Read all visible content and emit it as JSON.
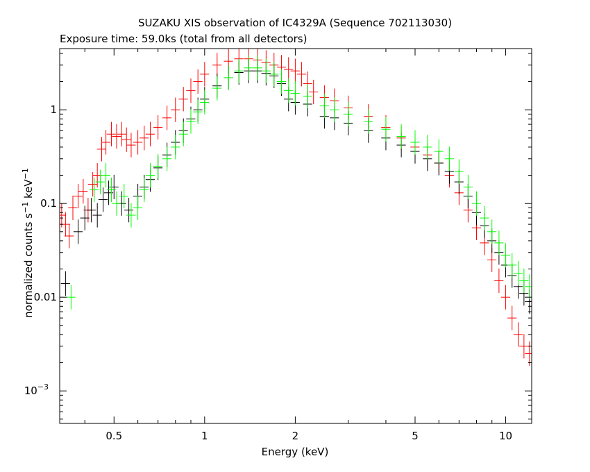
{
  "chart_data": {
    "type": "scatter",
    "title": "SUZAKU XIS observation of IC4329A (Sequence 702113030)",
    "subtitle": "Exposure time: 59.0ks (total from all detectors)",
    "xlabel": "Energy (keV)",
    "ylabel_main": "normalized counts s",
    "ylabel_sup1": "−1",
    "ylabel_mid": " keV",
    "ylabel_sup2": "−1",
    "x_scale": "log",
    "y_scale": "log",
    "xlim": [
      0.33,
      12.2
    ],
    "ylim": [
      0.00045,
      4.5
    ],
    "grid": false,
    "x_ticks": [
      {
        "value": 0.5,
        "label": "0.5"
      },
      {
        "value": 1,
        "label": "1"
      },
      {
        "value": 2,
        "label": "2"
      },
      {
        "value": 5,
        "label": "5"
      },
      {
        "value": 10,
        "label": "10"
      }
    ],
    "y_ticks": [
      {
        "value": 1,
        "label": "1"
      },
      {
        "value": 0.1,
        "label": "0.1"
      },
      {
        "value": 0.01,
        "label": "0.01"
      },
      {
        "value": 0.001,
        "label": "10",
        "sup": "−3"
      }
    ],
    "series": [
      {
        "color": "#ff0000",
        "points": [
          {
            "x": 0.335,
            "y": 0.075
          },
          {
            "x": 0.345,
            "y": 0.06
          },
          {
            "x": 0.355,
            "y": 0.045
          },
          {
            "x": 0.365,
            "y": 0.09
          },
          {
            "x": 0.38,
            "y": 0.12
          },
          {
            "x": 0.395,
            "y": 0.135
          },
          {
            "x": 0.41,
            "y": 0.085
          },
          {
            "x": 0.425,
            "y": 0.16
          },
          {
            "x": 0.44,
            "y": 0.2
          },
          {
            "x": 0.455,
            "y": 0.38
          },
          {
            "x": 0.47,
            "y": 0.45
          },
          {
            "x": 0.49,
            "y": 0.55
          },
          {
            "x": 0.51,
            "y": 0.52
          },
          {
            "x": 0.53,
            "y": 0.55
          },
          {
            "x": 0.55,
            "y": 0.48
          },
          {
            "x": 0.57,
            "y": 0.42
          },
          {
            "x": 0.6,
            "y": 0.45
          },
          {
            "x": 0.63,
            "y": 0.5
          },
          {
            "x": 0.66,
            "y": 0.55
          },
          {
            "x": 0.7,
            "y": 0.65
          },
          {
            "x": 0.75,
            "y": 0.82
          },
          {
            "x": 0.8,
            "y": 1.0
          },
          {
            "x": 0.85,
            "y": 1.3
          },
          {
            "x": 0.9,
            "y": 1.6
          },
          {
            "x": 0.95,
            "y": 2.0
          },
          {
            "x": 1.0,
            "y": 2.4
          },
          {
            "x": 1.1,
            "y": 3.0
          },
          {
            "x": 1.2,
            "y": 3.3
          },
          {
            "x": 1.3,
            "y": 3.5
          },
          {
            "x": 1.4,
            "y": 3.5
          },
          {
            "x": 1.5,
            "y": 3.4
          },
          {
            "x": 1.6,
            "y": 3.2
          },
          {
            "x": 1.7,
            "y": 3.0
          },
          {
            "x": 1.8,
            "y": 2.85
          },
          {
            "x": 1.9,
            "y": 2.7
          },
          {
            "x": 2.0,
            "y": 2.6
          },
          {
            "x": 2.1,
            "y": 2.4
          },
          {
            "x": 2.2,
            "y": 1.9
          },
          {
            "x": 2.3,
            "y": 1.55
          },
          {
            "x": 2.5,
            "y": 1.35
          },
          {
            "x": 2.7,
            "y": 1.25
          },
          {
            "x": 3.0,
            "y": 1.05
          },
          {
            "x": 3.5,
            "y": 0.85
          },
          {
            "x": 4.0,
            "y": 0.65
          },
          {
            "x": 4.5,
            "y": 0.5
          },
          {
            "x": 5.0,
            "y": 0.4
          },
          {
            "x": 5.5,
            "y": 0.33
          },
          {
            "x": 6.0,
            "y": 0.27
          },
          {
            "x": 6.5,
            "y": 0.2
          },
          {
            "x": 7.0,
            "y": 0.13
          },
          {
            "x": 7.5,
            "y": 0.085
          },
          {
            "x": 8.0,
            "y": 0.055
          },
          {
            "x": 8.5,
            "y": 0.038
          },
          {
            "x": 9.0,
            "y": 0.025
          },
          {
            "x": 9.5,
            "y": 0.015
          },
          {
            "x": 10.0,
            "y": 0.01
          },
          {
            "x": 10.5,
            "y": 0.006
          },
          {
            "x": 11.0,
            "y": 0.004
          },
          {
            "x": 11.5,
            "y": 0.003
          },
          {
            "x": 12.0,
            "y": 0.0025
          }
        ]
      },
      {
        "color": "#000000",
        "points": [
          {
            "x": 0.345,
            "y": 0.014
          },
          {
            "x": 0.38,
            "y": 0.05
          },
          {
            "x": 0.4,
            "y": 0.07
          },
          {
            "x": 0.42,
            "y": 0.085
          },
          {
            "x": 0.44,
            "y": 0.075
          },
          {
            "x": 0.46,
            "y": 0.11
          },
          {
            "x": 0.48,
            "y": 0.13
          },
          {
            "x": 0.5,
            "y": 0.15
          },
          {
            "x": 0.53,
            "y": 0.1
          },
          {
            "x": 0.56,
            "y": 0.085
          },
          {
            "x": 0.6,
            "y": 0.12
          },
          {
            "x": 0.63,
            "y": 0.15
          },
          {
            "x": 0.66,
            "y": 0.18
          },
          {
            "x": 0.7,
            "y": 0.24
          },
          {
            "x": 0.75,
            "y": 0.33
          },
          {
            "x": 0.8,
            "y": 0.45
          },
          {
            "x": 0.85,
            "y": 0.6
          },
          {
            "x": 0.9,
            "y": 0.8
          },
          {
            "x": 0.95,
            "y": 1.0
          },
          {
            "x": 1.0,
            "y": 1.3
          },
          {
            "x": 1.1,
            "y": 1.8
          },
          {
            "x": 1.2,
            "y": 2.2
          },
          {
            "x": 1.3,
            "y": 2.5
          },
          {
            "x": 1.4,
            "y": 2.6
          },
          {
            "x": 1.5,
            "y": 2.6
          },
          {
            "x": 1.6,
            "y": 2.45
          },
          {
            "x": 1.7,
            "y": 2.3
          },
          {
            "x": 1.8,
            "y": 1.9
          },
          {
            "x": 1.9,
            "y": 1.3
          },
          {
            "x": 2.0,
            "y": 1.2
          },
          {
            "x": 2.2,
            "y": 1.15
          },
          {
            "x": 2.5,
            "y": 0.85
          },
          {
            "x": 2.7,
            "y": 0.82
          },
          {
            "x": 3.0,
            "y": 0.72
          },
          {
            "x": 3.5,
            "y": 0.6
          },
          {
            "x": 4.0,
            "y": 0.5
          },
          {
            "x": 4.5,
            "y": 0.42
          },
          {
            "x": 5.0,
            "y": 0.36
          },
          {
            "x": 5.5,
            "y": 0.3
          },
          {
            "x": 6.0,
            "y": 0.27
          },
          {
            "x": 6.5,
            "y": 0.22
          },
          {
            "x": 7.0,
            "y": 0.17
          },
          {
            "x": 7.5,
            "y": 0.12
          },
          {
            "x": 8.0,
            "y": 0.08
          },
          {
            "x": 8.5,
            "y": 0.058
          },
          {
            "x": 9.0,
            "y": 0.04
          },
          {
            "x": 9.5,
            "y": 0.03
          },
          {
            "x": 10.0,
            "y": 0.022
          },
          {
            "x": 10.5,
            "y": 0.017
          },
          {
            "x": 11.0,
            "y": 0.013
          },
          {
            "x": 11.5,
            "y": 0.011
          },
          {
            "x": 12.0,
            "y": 0.009
          }
        ]
      },
      {
        "color": "#00ff00",
        "points": [
          {
            "x": 0.36,
            "y": 0.01
          },
          {
            "x": 0.43,
            "y": 0.14
          },
          {
            "x": 0.45,
            "y": 0.17
          },
          {
            "x": 0.47,
            "y": 0.2
          },
          {
            "x": 0.49,
            "y": 0.14
          },
          {
            "x": 0.51,
            "y": 0.1
          },
          {
            "x": 0.54,
            "y": 0.12
          },
          {
            "x": 0.57,
            "y": 0.075
          },
          {
            "x": 0.6,
            "y": 0.09
          },
          {
            "x": 0.63,
            "y": 0.14
          },
          {
            "x": 0.66,
            "y": 0.2
          },
          {
            "x": 0.7,
            "y": 0.25
          },
          {
            "x": 0.75,
            "y": 0.3
          },
          {
            "x": 0.8,
            "y": 0.4
          },
          {
            "x": 0.85,
            "y": 0.55
          },
          {
            "x": 0.9,
            "y": 0.75
          },
          {
            "x": 0.95,
            "y": 0.95
          },
          {
            "x": 1.0,
            "y": 1.2
          },
          {
            "x": 1.1,
            "y": 1.7
          },
          {
            "x": 1.2,
            "y": 2.2
          },
          {
            "x": 1.3,
            "y": 2.6
          },
          {
            "x": 1.4,
            "y": 2.8
          },
          {
            "x": 1.5,
            "y": 2.8
          },
          {
            "x": 1.6,
            "y": 2.6
          },
          {
            "x": 1.7,
            "y": 2.4
          },
          {
            "x": 1.8,
            "y": 2.0
          },
          {
            "x": 1.9,
            "y": 1.6
          },
          {
            "x": 2.0,
            "y": 1.5
          },
          {
            "x": 2.2,
            "y": 1.4
          },
          {
            "x": 2.5,
            "y": 1.1
          },
          {
            "x": 2.7,
            "y": 1.0
          },
          {
            "x": 3.0,
            "y": 0.9
          },
          {
            "x": 3.5,
            "y": 0.75
          },
          {
            "x": 4.0,
            "y": 0.62
          },
          {
            "x": 4.5,
            "y": 0.52
          },
          {
            "x": 5.0,
            "y": 0.45
          },
          {
            "x": 5.5,
            "y": 0.4
          },
          {
            "x": 6.0,
            "y": 0.36
          },
          {
            "x": 6.5,
            "y": 0.3
          },
          {
            "x": 7.0,
            "y": 0.22
          },
          {
            "x": 7.5,
            "y": 0.15
          },
          {
            "x": 8.0,
            "y": 0.1
          },
          {
            "x": 8.5,
            "y": 0.07
          },
          {
            "x": 9.0,
            "y": 0.05
          },
          {
            "x": 9.5,
            "y": 0.038
          },
          {
            "x": 10.0,
            "y": 0.028
          },
          {
            "x": 10.5,
            "y": 0.022
          },
          {
            "x": 11.0,
            "y": 0.018
          },
          {
            "x": 11.5,
            "y": 0.015
          },
          {
            "x": 12.0,
            "y": 0.013
          }
        ]
      }
    ]
  }
}
